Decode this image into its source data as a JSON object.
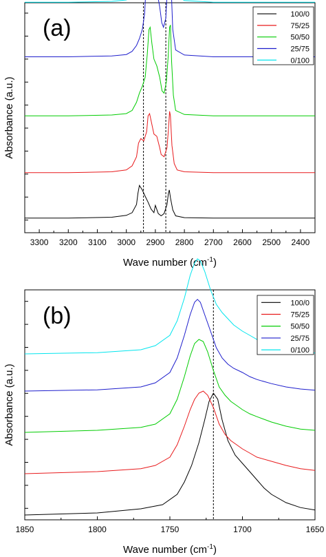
{
  "colors": {
    "100/0": "#000000",
    "75/25": "#e8191b",
    "50/50": "#00cc00",
    "25/75": "#1c1ccc",
    "0/100": "#00e5ee"
  },
  "chart_data": [
    {
      "type": "line",
      "panel_label": "(a)",
      "xlabel": "Wave number (cm",
      "xlabel_sup": "-1",
      "xlabel_tail": ")",
      "ylabel": "Absorbance (a.u.)",
      "xlim": [
        3350,
        2350
      ],
      "x_reversed": true,
      "x_ticks": [
        "3300",
        "3200",
        "3100",
        "3000",
        "2900",
        "2800",
        "2700",
        "2600",
        "2500",
        "2400"
      ],
      "x_tick_values": [
        3300,
        3200,
        3100,
        3000,
        2900,
        2800,
        2700,
        2600,
        2500,
        2400
      ],
      "ylim": [
        0,
        10
      ],
      "y_minor_ticks": [
        0.55,
        1.55,
        2.55,
        3.55,
        4.55,
        5.55,
        6.55,
        7.55,
        8.55,
        9.55
      ],
      "reference_lines": [
        2941,
        2864
      ],
      "legend": [
        "100/0",
        "75/25",
        "50/50",
        "25/75",
        "0/100"
      ],
      "legend_position": "top-right",
      "series": [
        {
          "name": "100/0",
          "offset": 0.2,
          "x": [
            3350,
            3200,
            3050,
            3000,
            2980,
            2965,
            2960,
            2955,
            2945,
            2935,
            2925,
            2915,
            2905,
            2900,
            2890,
            2880,
            2870,
            2860,
            2855,
            2852,
            2848,
            2840,
            2830,
            2800,
            2700,
            2500,
            2350
          ],
          "values": [
            0,
            0,
            0.02,
            0.06,
            0.12,
            0.3,
            0.55,
            0.72,
            0.62,
            0.48,
            0.35,
            0.2,
            0.12,
            0.28,
            0.1,
            0.05,
            0.1,
            0.3,
            0.55,
            0.62,
            0.45,
            0.18,
            0.05,
            0.01,
            0,
            0,
            0
          ]
        },
        {
          "name": "75/25",
          "offset": 1.2,
          "x": [
            3350,
            3200,
            3050,
            3000,
            2980,
            2965,
            2958,
            2950,
            2940,
            2930,
            2925,
            2920,
            2915,
            2905,
            2895,
            2885,
            2880,
            2870,
            2860,
            2855,
            2851,
            2848,
            2843,
            2835,
            2825,
            2800,
            2700,
            2500,
            2350
          ],
          "values": [
            0,
            0,
            0.02,
            0.06,
            0.15,
            0.35,
            0.65,
            0.75,
            0.7,
            0.9,
            1.25,
            1.3,
            1.15,
            0.85,
            0.8,
            0.55,
            0.4,
            0.35,
            0.55,
            0.95,
            1.35,
            1.25,
            0.6,
            0.2,
            0.06,
            0.02,
            0,
            0,
            0
          ]
        },
        {
          "name": "50/50",
          "offset": 2.45,
          "x": [
            3350,
            3200,
            3050,
            3000,
            2980,
            2965,
            2955,
            2945,
            2935,
            2928,
            2922,
            2918,
            2912,
            2905,
            2895,
            2885,
            2877,
            2870,
            2862,
            2856,
            2851,
            2848,
            2844,
            2838,
            2830,
            2800,
            2700,
            2500,
            2350
          ],
          "values": [
            0,
            0,
            0.02,
            0.05,
            0.12,
            0.3,
            0.5,
            0.65,
            0.85,
            1.35,
            1.9,
            1.95,
            1.6,
            1.25,
            1.1,
            0.85,
            0.55,
            0.5,
            0.75,
            1.3,
            1.95,
            2.0,
            1.2,
            0.45,
            0.12,
            0.03,
            0,
            0,
            0
          ]
        },
        {
          "name": "25/75",
          "offset": 3.75,
          "x": [
            3350,
            3200,
            3050,
            3000,
            2980,
            2965,
            2955,
            2945,
            2937,
            2930,
            2924,
            2918,
            2912,
            2905,
            2895,
            2885,
            2878,
            2872,
            2864,
            2858,
            2853,
            2850,
            2846,
            2840,
            2830,
            2800,
            2700,
            2500,
            2350
          ],
          "values": [
            0,
            0,
            0.02,
            0.05,
            0.12,
            0.25,
            0.4,
            0.6,
            0.95,
            1.8,
            2.65,
            2.75,
            2.3,
            1.75,
            1.45,
            1.1,
            0.75,
            0.65,
            0.85,
            1.6,
            2.45,
            2.55,
            1.6,
            0.6,
            0.15,
            0.04,
            0,
            0,
            0
          ]
        },
        {
          "name": "0/100",
          "offset": 4.95,
          "x": [
            3350,
            3200,
            3050,
            3000,
            2980,
            2965,
            2955,
            2945,
            2937,
            2930,
            2924,
            2918,
            2912,
            2905,
            2895,
            2885,
            2878,
            2872,
            2864,
            2858,
            2853,
            2849,
            2845,
            2840,
            2830,
            2800,
            2700,
            2500,
            2350
          ],
          "values": [
            0,
            0,
            0.02,
            0.05,
            0.12,
            0.25,
            0.4,
            0.6,
            0.95,
            1.9,
            3.1,
            3.25,
            2.6,
            1.9,
            1.5,
            1.0,
            0.6,
            0.5,
            0.8,
            1.8,
            2.9,
            3.05,
            1.9,
            0.6,
            0.15,
            0.04,
            0,
            0,
            0
          ]
        }
      ]
    },
    {
      "type": "line",
      "panel_label": "(b)",
      "xlabel": "Wave number (cm",
      "xlabel_sup": "-1",
      "xlabel_tail": ")",
      "ylabel": "Absorbance (a.u.)",
      "xlim": [
        1850,
        1650
      ],
      "x_reversed": true,
      "x_ticks": [
        "1850",
        "1800",
        "1750",
        "1700",
        "1650"
      ],
      "x_tick_values": [
        1850,
        1800,
        1750,
        1700,
        1650
      ],
      "ylim": [
        0,
        10
      ],
      "y_minor_ticks": [
        0.5,
        1.5,
        2.5,
        3.5,
        4.5,
        5.5,
        6.5,
        7.5,
        8.5,
        9.5
      ],
      "reference_lines": [
        1720
      ],
      "legend": [
        "100/0",
        "75/25",
        "50/50",
        "25/75",
        "0/100"
      ],
      "legend_position": "top-right",
      "series": [
        {
          "name": "100/0",
          "offset": 0.1,
          "x": [
            1850,
            1800,
            1770,
            1755,
            1745,
            1740,
            1735,
            1730,
            1726,
            1723,
            1720,
            1717,
            1714,
            1710,
            1705,
            1700,
            1695,
            1690,
            1685,
            1680,
            1670,
            1660,
            1650
          ],
          "values": [
            0,
            0.05,
            0.15,
            0.25,
            0.5,
            0.8,
            1.2,
            1.75,
            2.3,
            2.75,
            2.95,
            2.8,
            2.3,
            1.8,
            1.45,
            1.25,
            1.05,
            0.85,
            0.65,
            0.5,
            0.3,
            0.18,
            0.12
          ]
        },
        {
          "name": "75/25",
          "offset": 1.1,
          "x": [
            1850,
            1800,
            1770,
            1760,
            1750,
            1745,
            1740,
            1736,
            1733,
            1730,
            1727,
            1724,
            1720,
            1716,
            1712,
            1708,
            1704,
            1700,
            1695,
            1690,
            1680,
            1670,
            1660,
            1650
          ],
          "values": [
            0,
            0.05,
            0.12,
            0.2,
            0.4,
            0.7,
            1.15,
            1.55,
            1.8,
            1.95,
            2.0,
            1.9,
            1.6,
            1.2,
            0.95,
            0.8,
            0.7,
            0.6,
            0.5,
            0.4,
            0.3,
            0.2,
            0.12,
            0.08
          ]
        },
        {
          "name": "50/50",
          "offset": 2.1,
          "x": [
            1850,
            1800,
            1770,
            1760,
            1750,
            1745,
            1740,
            1736,
            1733,
            1730,
            1727,
            1724,
            1720,
            1716,
            1712,
            1708,
            1704,
            1700,
            1695,
            1690,
            1680,
            1670,
            1660,
            1650
          ],
          "values": [
            0,
            0.05,
            0.12,
            0.2,
            0.45,
            0.8,
            1.35,
            1.85,
            2.15,
            2.25,
            2.2,
            1.95,
            1.5,
            1.1,
            0.9,
            0.75,
            0.65,
            0.55,
            0.45,
            0.38,
            0.25,
            0.15,
            0.08,
            0.05
          ]
        },
        {
          "name": "25/75",
          "offset": 3.1,
          "x": [
            1850,
            1800,
            1770,
            1760,
            1750,
            1745,
            1740,
            1736,
            1733,
            1731,
            1729,
            1726,
            1722,
            1718,
            1714,
            1710,
            1706,
            1700,
            1695,
            1690,
            1680,
            1670,
            1660,
            1650
          ],
          "values": [
            0,
            0.03,
            0.1,
            0.2,
            0.45,
            0.8,
            1.35,
            1.85,
            2.15,
            2.22,
            2.15,
            1.85,
            1.45,
            1.05,
            0.8,
            0.65,
            0.55,
            0.45,
            0.35,
            0.28,
            0.18,
            0.1,
            0.05,
            0.02
          ]
        },
        {
          "name": "0/100",
          "offset": 4.0,
          "x": [
            1850,
            1800,
            1770,
            1760,
            1750,
            1745,
            1740,
            1736,
            1733,
            1731,
            1729,
            1726,
            1722,
            1718,
            1714,
            1710,
            1706,
            1700,
            1695,
            1690,
            1680,
            1670,
            1660,
            1650
          ],
          "values": [
            0,
            0.03,
            0.1,
            0.2,
            0.45,
            0.8,
            1.35,
            1.9,
            2.2,
            2.3,
            2.25,
            2.0,
            1.55,
            1.2,
            1.0,
            0.85,
            0.7,
            0.55,
            0.45,
            0.35,
            0.22,
            0.12,
            0.06,
            0.02
          ]
        }
      ]
    }
  ]
}
